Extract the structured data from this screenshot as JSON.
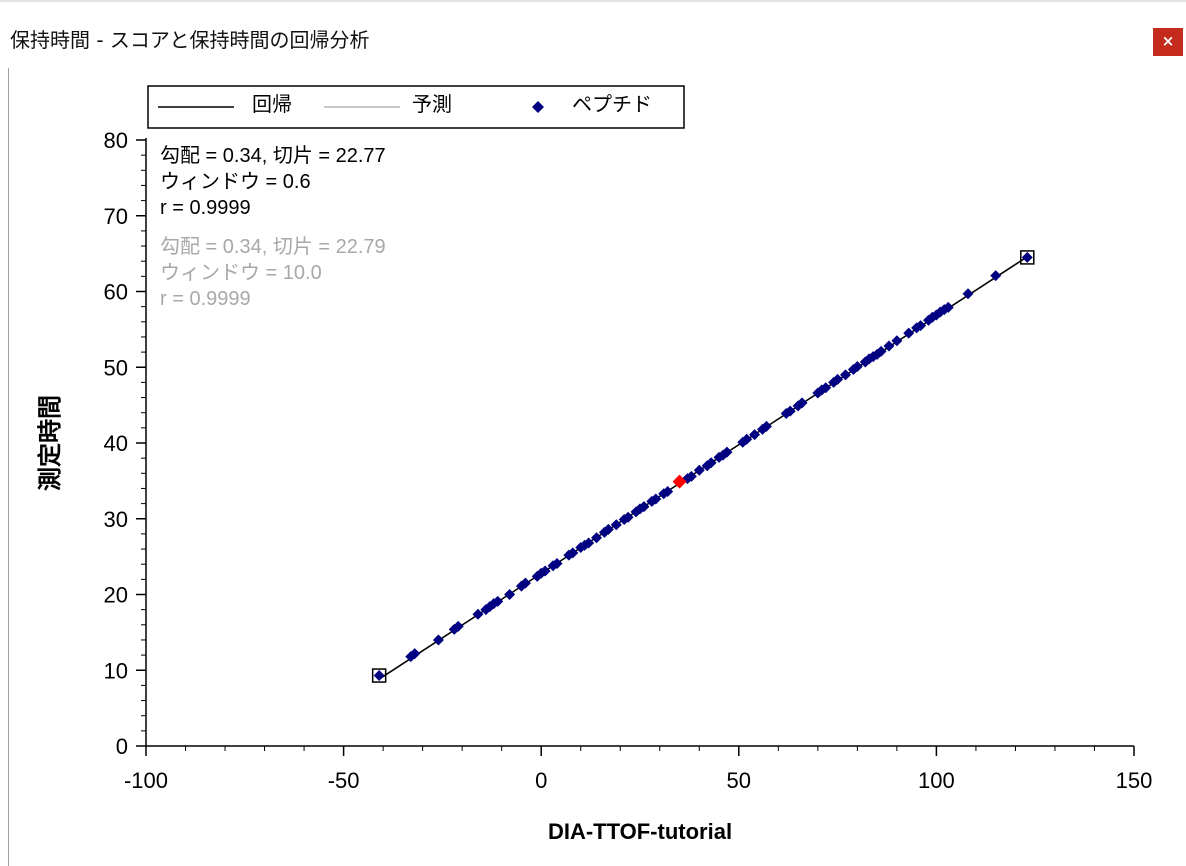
{
  "window": {
    "title": "保持時間 - スコアと保持時間の回帰分析",
    "close_label": "×"
  },
  "chart_data": {
    "type": "scatter",
    "xlabel": "DIA-TTOF-tutorial",
    "ylabel": "測定時間",
    "xlim": [
      -100,
      150
    ],
    "ylim": [
      0,
      80
    ],
    "x_ticks": [
      -100,
      -50,
      0,
      50,
      100,
      150
    ],
    "y_ticks": [
      0,
      10,
      20,
      30,
      40,
      50,
      60,
      70,
      80
    ],
    "x_tick_labels": [
      "-100",
      "-50",
      "0",
      "50",
      "100",
      "150"
    ],
    "y_tick_labels": [
      "0",
      "10",
      "20",
      "30",
      "40",
      "50",
      "60",
      "70",
      "80"
    ],
    "legend": {
      "position": "top",
      "entries": [
        {
          "label": "回帰",
          "kind": "line",
          "color": "#000000"
        },
        {
          "label": "予測",
          "kind": "line",
          "color": "#b4b4b4"
        },
        {
          "label": "ペプチド",
          "kind": "marker",
          "color": "#000080"
        }
      ]
    },
    "annotations": {
      "regression": [
        "勾配 = 0.34, 切片 = 22.77",
        "ウィンドウ = 0.6",
        "r = 0.9999"
      ],
      "prediction": [
        "勾配 = 0.34, 切片 = 22.79",
        "ウィンドウ = 10.0",
        "r = 0.9999"
      ]
    },
    "regression_line": {
      "slope": 0.34,
      "intercept": 22.77,
      "x_range": [
        -41,
        123
      ]
    },
    "prediction_line": {
      "slope": 0.34,
      "intercept": 22.79,
      "x_range": [
        -41,
        123
      ]
    },
    "series": [
      {
        "name": "ペプチド",
        "color": "#000080",
        "x": [
          -41,
          -33,
          -32,
          -26,
          -22,
          -21,
          -16,
          -14,
          -13,
          -12,
          -11,
          -8,
          -5,
          -4,
          -1,
          0,
          1,
          3,
          4,
          7,
          8,
          10,
          11,
          12,
          14,
          16,
          17,
          19,
          21,
          22,
          24,
          25,
          26,
          28,
          29,
          31,
          32,
          37,
          38,
          40,
          42,
          43,
          45,
          46,
          47,
          51,
          52,
          54,
          56,
          57,
          62,
          63,
          65,
          66,
          70,
          71,
          72,
          74,
          75,
          77,
          79,
          80,
          82,
          83,
          84,
          85,
          86,
          88,
          90,
          93,
          95,
          96,
          98,
          99,
          100,
          101,
          102,
          103,
          108,
          115,
          123
        ],
        "y": [
          9.3,
          11.8,
          12.2,
          14.0,
          15.4,
          15.8,
          17.4,
          18.0,
          18.4,
          18.8,
          19.1,
          20.0,
          21.1,
          21.5,
          22.4,
          22.8,
          23.1,
          23.8,
          24.1,
          25.2,
          25.5,
          26.2,
          26.5,
          26.8,
          27.5,
          28.2,
          28.6,
          29.2,
          29.9,
          30.2,
          30.9,
          31.3,
          31.6,
          32.3,
          32.6,
          33.3,
          33.6,
          35.3,
          35.6,
          36.4,
          37.0,
          37.4,
          38.1,
          38.4,
          38.8,
          40.1,
          40.5,
          41.1,
          41.8,
          42.2,
          43.9,
          44.2,
          44.9,
          45.3,
          46.6,
          47.0,
          47.3,
          48.0,
          48.4,
          49.0,
          49.7,
          50.1,
          50.7,
          51.1,
          51.4,
          51.7,
          52.1,
          52.8,
          53.5,
          54.5,
          55.2,
          55.5,
          56.2,
          56.6,
          56.9,
          57.3,
          57.6,
          57.9,
          59.7,
          62.1,
          64.5
        ]
      },
      {
        "name": "",
        "color": "#ff0000",
        "x": [
          35
        ],
        "y": [
          34.9
        ]
      }
    ],
    "boxed_points": [
      {
        "x": -41,
        "y": 9.3
      },
      {
        "x": 123,
        "y": 64.5
      }
    ]
  }
}
